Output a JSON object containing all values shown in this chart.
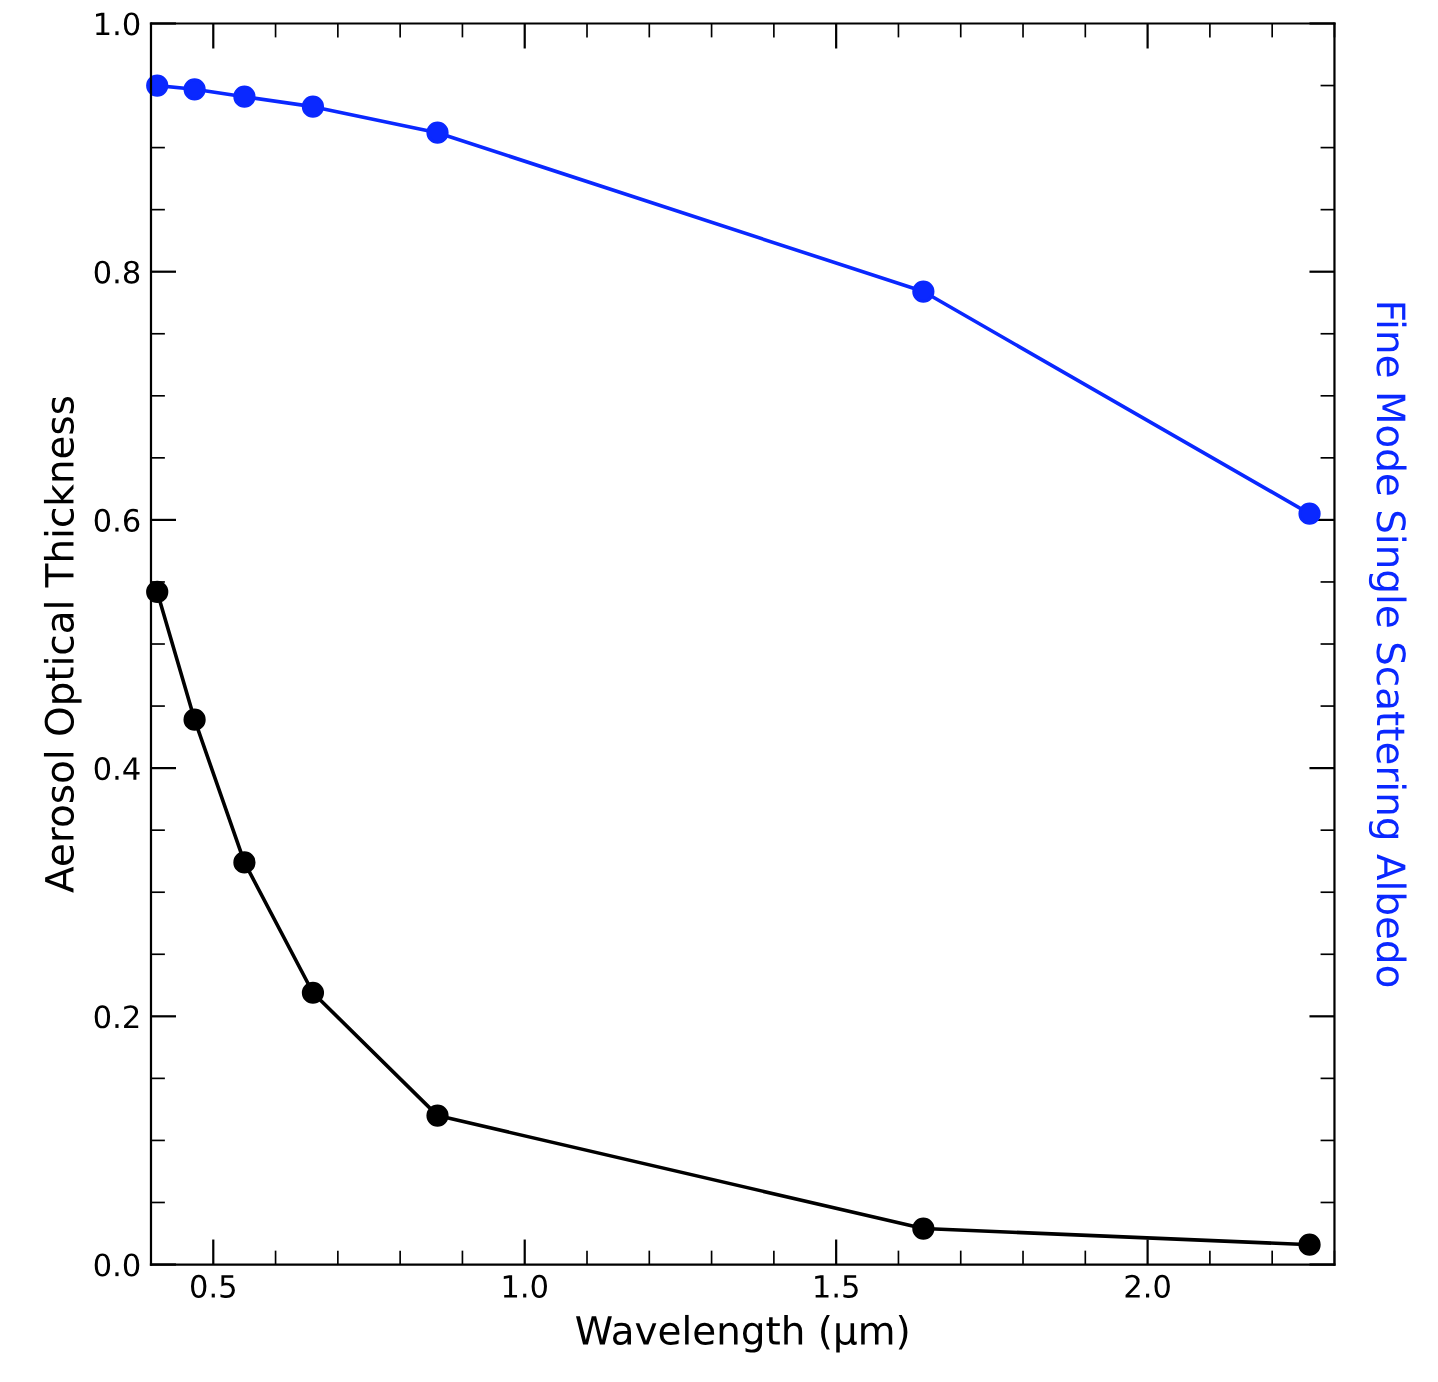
{
  "chart_data": {
    "type": "line",
    "xlabel": "Wavelength (µm)",
    "ylabel": "Aerosol Optical Thickness",
    "y2label": "Fine Mode Single Scattering Albedo",
    "xlim": [
      0.4,
      2.3
    ],
    "xticks": [
      0.5,
      {
        "value": 1,
        "label": "1.0"
      },
      1.5,
      {
        "value": 2,
        "label": "2.0"
      }
    ],
    "ylim": [
      0.0,
      1.0
    ],
    "yticks": [
      {
        "value": 0,
        "label": "0.0"
      },
      0.2,
      0.4,
      0.6,
      0.8,
      {
        "value": 1,
        "label": "1.0"
      }
    ],
    "marker": "circle",
    "line_style": "solid",
    "grid": false,
    "legend": false,
    "series": [
      {
        "color": "#000000",
        "x": [
          0.41,
          0.47,
          0.55,
          0.66,
          0.86,
          1.64,
          2.26
        ],
        "values": [
          0.542,
          0.439,
          0.324,
          0.219,
          0.12,
          0.029,
          0.016
        ]
      },
      {
        "color": "#0a28ff",
        "x": [
          0.41,
          0.47,
          0.55,
          0.66,
          0.86,
          1.64,
          2.26
        ],
        "values": [
          0.95,
          0.947,
          0.941,
          0.933,
          0.912,
          0.784,
          0.605
        ]
      }
    ]
  }
}
